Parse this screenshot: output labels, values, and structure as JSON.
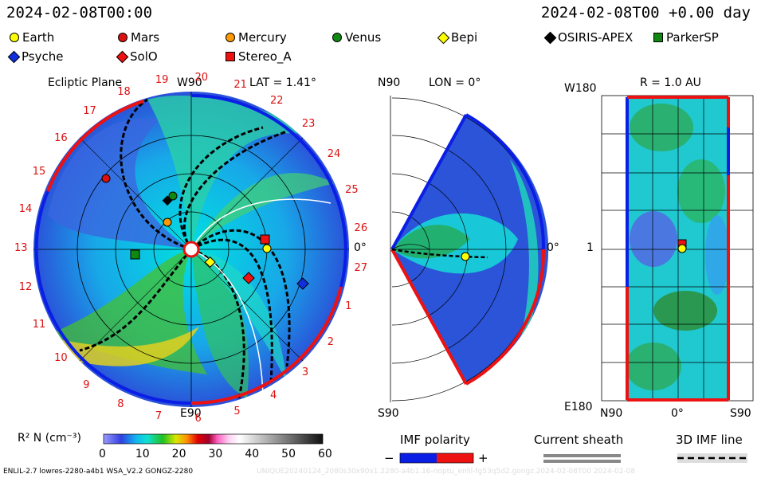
{
  "header": {
    "left_time": "2024-02-08T00:00",
    "right_time": "2024-02-08T00 +0.00 day"
  },
  "legend": [
    {
      "label": "Earth",
      "color": "#ffff00",
      "shape": "circle"
    },
    {
      "label": "Mars",
      "color": "#dd1010",
      "shape": "circle"
    },
    {
      "label": "Mercury",
      "color": "#ff9900",
      "shape": "circle"
    },
    {
      "label": "Venus",
      "color": "#118811",
      "shape": "circle"
    },
    {
      "label": "Bepi",
      "color": "#ffff00",
      "shape": "diamond"
    },
    {
      "label": "OSIRIS-APEX",
      "color": "#000000",
      "shape": "diamond"
    },
    {
      "label": "ParkerSP",
      "color": "#118811",
      "shape": "square"
    },
    {
      "label": "Psyche",
      "color": "#1030dd",
      "shape": "diamond"
    },
    {
      "label": "SolO",
      "color": "#ee1111",
      "shape": "diamond"
    },
    {
      "label": "Stereo_A",
      "color": "#ee1111",
      "shape": "square"
    }
  ],
  "panels": {
    "ecliptic": {
      "title": "Ecliptic Plane",
      "top_label": "W90",
      "lat_label": "LAT = 1.41°",
      "bottom_label": "E90",
      "right_label": "0°",
      "carrington_ticks": [
        "19",
        "20",
        "21",
        "22",
        "23",
        "24",
        "25",
        "26",
        "27",
        "1",
        "2",
        "3",
        "4",
        "5",
        "6",
        "7",
        "8",
        "9",
        "10",
        "11",
        "12",
        "13",
        "14",
        "15",
        "16",
        "17",
        "18"
      ]
    },
    "meridional": {
      "top_label": "N90",
      "lon_label": "LON = 0°",
      "bottom_label": "S90",
      "right_label": "0°"
    },
    "map": {
      "title": "R = 1.0 AU",
      "y_top": "W180",
      "y_mid": "1",
      "y_bottom": "E180",
      "x_left": "N90",
      "x_mid": "0°",
      "x_right": "S90"
    }
  },
  "colorbar": {
    "label": "R² N (cm⁻³)",
    "ticks": [
      "0",
      "10",
      "20",
      "30",
      "40",
      "50",
      "60"
    ]
  },
  "keys": {
    "imf_title": "IMF polarity",
    "imf_minus": "−",
    "imf_plus": "+",
    "sheath_title": "Current sheath",
    "imf3d_title": "3D IMF line",
    "colors": {
      "negative": "#0a1ee6",
      "positive": "#ee1111"
    }
  },
  "footer": {
    "model": "ENLIL-2.7 lowres-2280-a4b1 WSA_V2.2 GONGZ-2280",
    "watermark": "UNIQUE20240124_2080s30x90x1.2280-a4b1.16-noptu_enlil-fg53q5d2.gongz.2024-02-08T00   2024-02-08"
  },
  "chart_data": {
    "type": "heatmap",
    "title": "R² N (cm⁻³)",
    "value_range": [
      0,
      60
    ],
    "observer_time": "2024-02-08T00:00",
    "offset_days": 0.0,
    "ecliptic_latitude_deg": 1.41,
    "meridional_longitude_deg": 0,
    "map_radius_au": 1.0
  }
}
